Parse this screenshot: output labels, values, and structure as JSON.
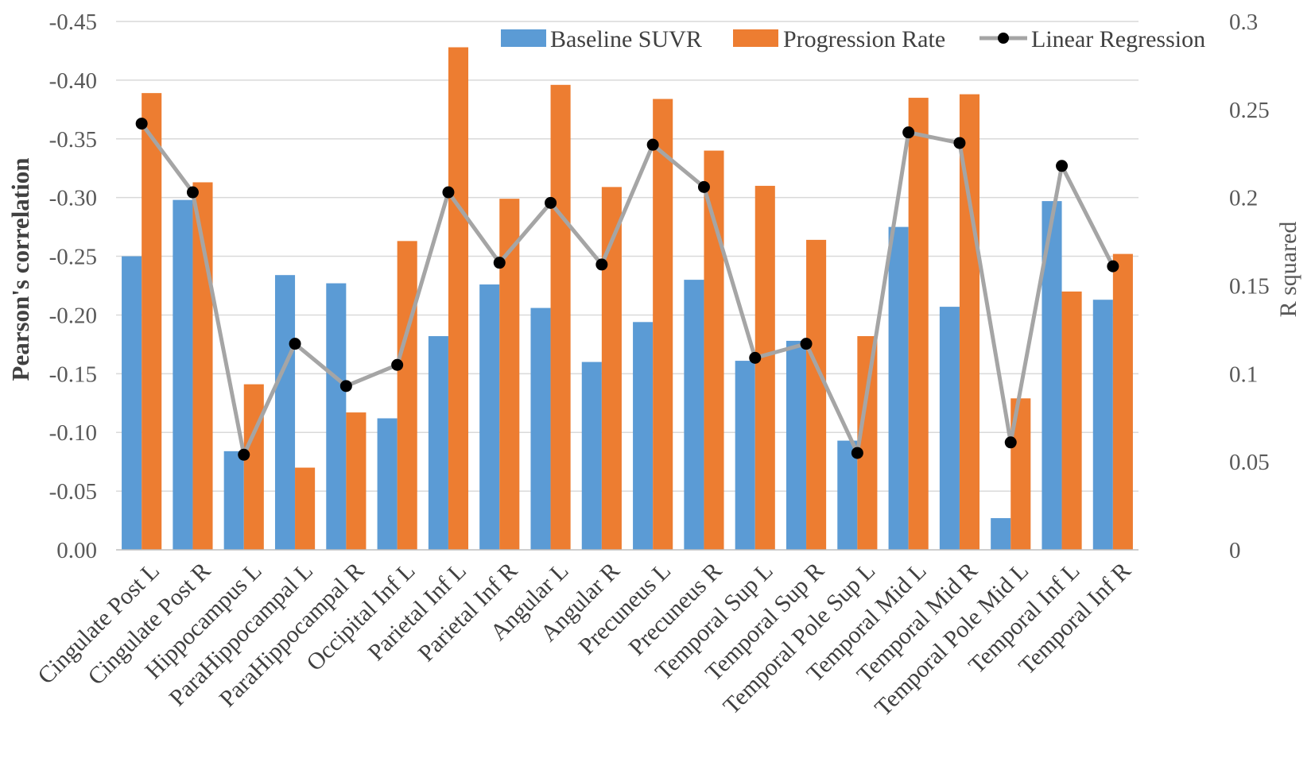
{
  "chart_data": {
    "type": "bar",
    "categories": [
      "Cingulate Post L",
      "Cingulate Post R",
      "Hippocampus L",
      "ParaHippocampal L",
      "ParaHippocampal R",
      "Occipital Inf L",
      "Parietal Inf L",
      "Parietal Inf R",
      "Angular L",
      "Angular R",
      "Precuneus L",
      "Precuneus R",
      "Temporal Sup L",
      "Temporal Sup R",
      "Temporal Pole Sup L",
      "Temporal Mid L",
      "Temporal Mid R",
      "Temporal Pole Mid L",
      "Temporal Inf L",
      "Temporal Inf R"
    ],
    "series": [
      {
        "name": "Baseline SUVR",
        "axis": "left",
        "color": "#5b9bd5",
        "values": [
          -0.25,
          -0.298,
          -0.084,
          -0.234,
          -0.227,
          -0.112,
          -0.182,
          -0.226,
          -0.206,
          -0.16,
          -0.194,
          -0.23,
          -0.161,
          -0.178,
          -0.093,
          -0.275,
          -0.207,
          -0.027,
          -0.297,
          -0.213
        ]
      },
      {
        "name": "Progression Rate",
        "axis": "left",
        "color": "#ed7d31",
        "values": [
          -0.389,
          -0.313,
          -0.141,
          -0.07,
          -0.117,
          -0.263,
          -0.428,
          -0.299,
          -0.396,
          -0.309,
          -0.384,
          -0.34,
          -0.31,
          -0.264,
          -0.182,
          -0.385,
          -0.388,
          -0.129,
          -0.22,
          -0.252
        ]
      },
      {
        "name": "Linear Regression",
        "axis": "right",
        "type": "line",
        "color": "#a5a5a5",
        "marker_color": "#000000",
        "values": [
          0.242,
          0.203,
          0.054,
          0.117,
          0.093,
          0.105,
          0.203,
          0.163,
          0.197,
          0.162,
          0.23,
          0.206,
          0.109,
          0.117,
          0.055,
          0.237,
          0.231,
          0.061,
          0.218,
          0.161
        ]
      }
    ],
    "title": "",
    "xlabel": "",
    "ylabel": "Pearson's correlation",
    "y2label": "R squared",
    "ylim": [
      0,
      -0.45
    ],
    "y2lim": [
      0,
      0.3
    ],
    "yticks": [
      "0.00",
      "-0.05",
      "-0.10",
      "-0.15",
      "-0.20",
      "-0.25",
      "-0.30",
      "-0.35",
      "-0.40",
      "-0.45"
    ],
    "y2ticks": [
      "0",
      "0.05",
      "0.1",
      "0.15",
      "0.2",
      "0.25",
      "0.3"
    ],
    "grid": true,
    "legend": "top-right"
  }
}
